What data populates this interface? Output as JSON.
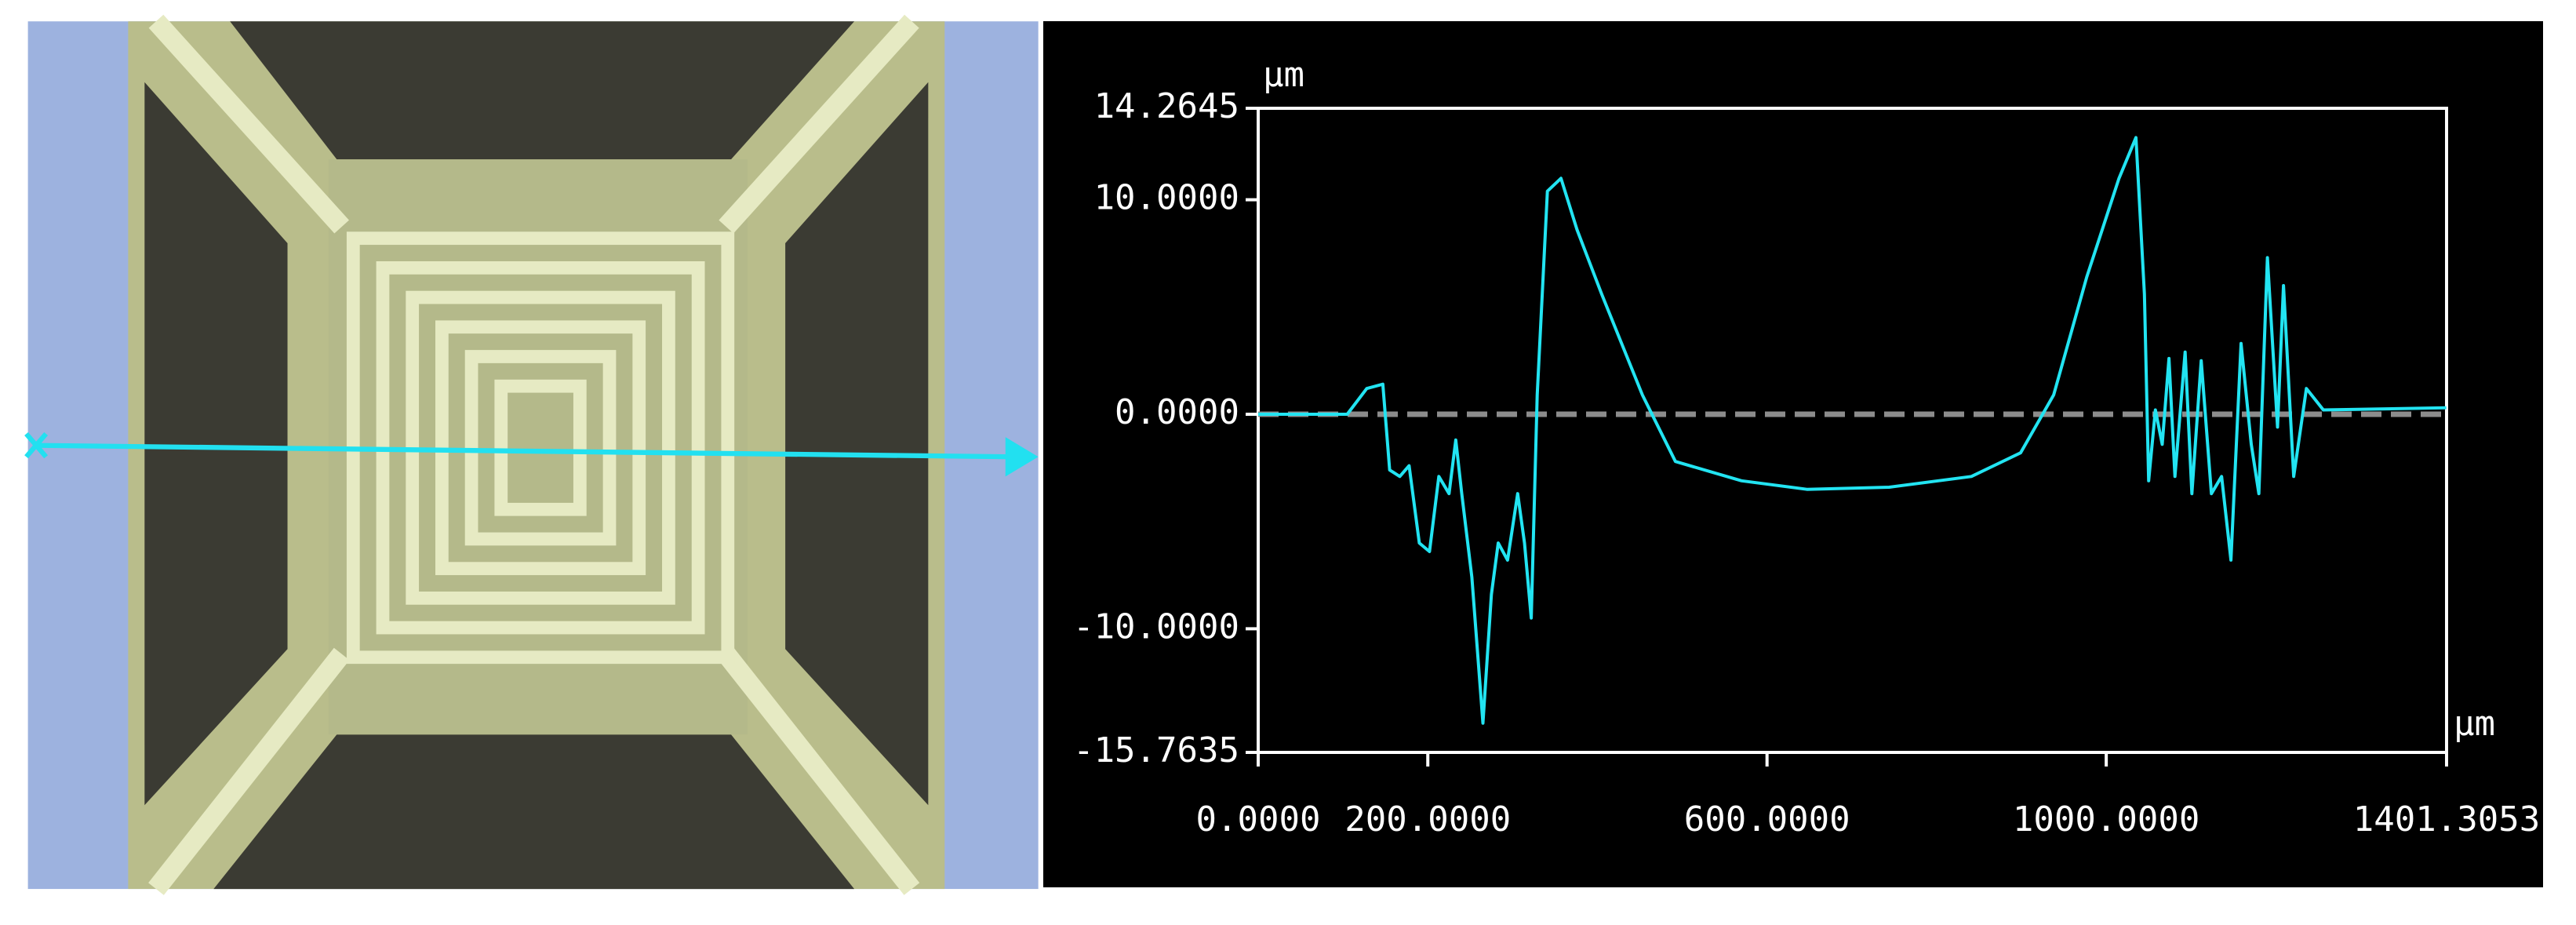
{
  "chart_data": {
    "type": "line",
    "x_unit": "µm",
    "y_unit": "µm",
    "color": "#22e4f2",
    "x": [
      0,
      105,
      128,
      147,
      155,
      167,
      178,
      190,
      202,
      213,
      225,
      233,
      240,
      252,
      265,
      275,
      283,
      294,
      306,
      314,
      322,
      329,
      341,
      357,
      376,
      405,
      453,
      492,
      570,
      647,
      744,
      841,
      899,
      938,
      977,
      1015,
      1035,
      1045,
      1050,
      1058,
      1066,
      1074,
      1081,
      1093,
      1101,
      1112,
      1124,
      1136,
      1147,
      1159,
      1171,
      1180,
      1190,
      1202,
      1209,
      1221,
      1236,
      1256,
      1401
    ],
    "values": [
      0,
      0,
      1.2,
      1.4,
      -2.6,
      -2.9,
      -2.4,
      -6.0,
      -6.4,
      -2.9,
      -3.7,
      -1.2,
      -3.7,
      -7.6,
      -14.4,
      -8.4,
      -6.0,
      -6.8,
      -3.7,
      -6.0,
      -9.5,
      0.9,
      10.4,
      11.0,
      8.6,
      5.6,
      0.9,
      -2.2,
      -3.1,
      -3.5,
      -3.4,
      -2.9,
      -1.8,
      0.9,
      6.4,
      11.0,
      12.9,
      5.6,
      -3.1,
      0.2,
      -1.4,
      2.6,
      -2.9,
      2.9,
      -3.7,
      2.5,
      -3.7,
      -2.9,
      -6.8,
      3.3,
      -1.4,
      -3.7,
      7.3,
      -0.6,
      6.0,
      -2.9,
      1.2,
      0.2,
      0.3
    ],
    "xlim": [
      0,
      1401.3053
    ],
    "ylim": [
      -15.7635,
      14.2645
    ],
    "xticks": [
      {
        "value": 0,
        "label": "0.0000"
      },
      {
        "value": 200,
        "label": "200.0000"
      },
      {
        "value": 600,
        "label": "600.0000"
      },
      {
        "value": 1000,
        "label": "1000.0000"
      },
      {
        "value": 1401.3053,
        "label": "1401.3053"
      }
    ],
    "yticks": [
      {
        "value": 14.2645,
        "label": "14.2645"
      },
      {
        "value": 10,
        "label": "10.0000"
      },
      {
        "value": 0,
        "label": "0.0000"
      },
      {
        "value": -10,
        "label": "-10.0000"
      },
      {
        "value": -15.7635,
        "label": "-15.7635"
      }
    ],
    "reference_line": 0
  }
}
